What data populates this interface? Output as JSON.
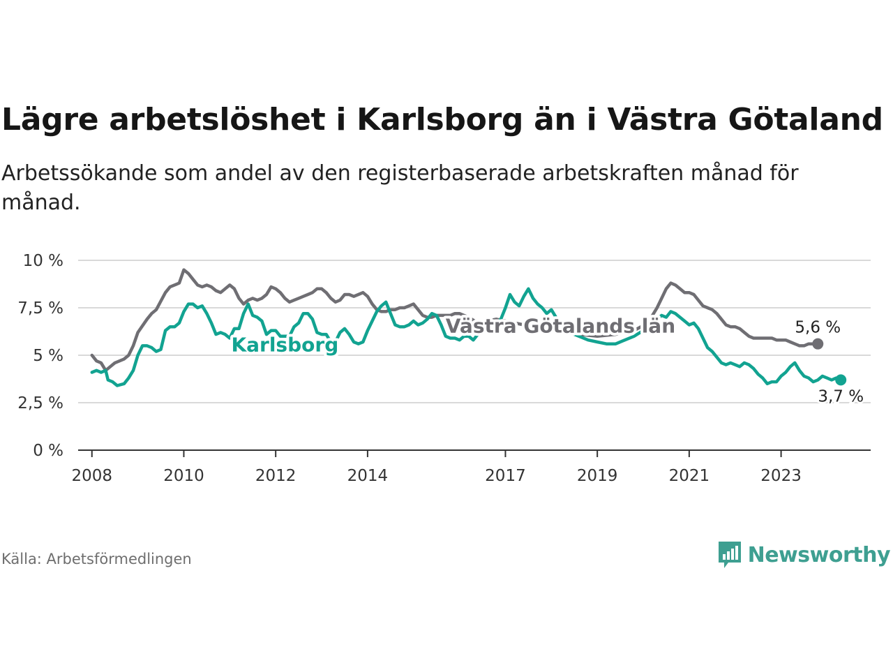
{
  "title": "Lägre arbetslöshet i Karlsborg än i Västra Götaland",
  "subtitle": "Arbetssökande som andel av den registerbaserade arbetskraften månad för månad.",
  "source": "Källa: Arbetsförmedlingen",
  "brand": "Newsworthy",
  "colors": {
    "vg": "#6f6e73",
    "karlsborg": "#12a391",
    "brand": "#3e9f91",
    "grid": "#d9d9d9",
    "axis": "#333333"
  },
  "chart_data": {
    "type": "line",
    "title": "Lägre arbetslöshet i Karlsborg än i Västra Götaland",
    "ylabel": "",
    "xlabel": "",
    "ylim": [
      0,
      10
    ],
    "xlim": [
      2007.7,
      2024.95
    ],
    "y_ticks": [
      {
        "value": 0,
        "label": "0 %"
      },
      {
        "value": 2.5,
        "label": "2,5 %"
      },
      {
        "value": 5,
        "label": "5 %"
      },
      {
        "value": 7.5,
        "label": "7,5 %"
      },
      {
        "value": 10,
        "label": "10 %"
      }
    ],
    "x_ticks": [
      {
        "value": 2008,
        "label": "2008"
      },
      {
        "value": 2010,
        "label": "2010"
      },
      {
        "value": 2012,
        "label": "2012"
      },
      {
        "value": 2014,
        "label": "2014"
      },
      {
        "value": 2017,
        "label": "2017"
      },
      {
        "value": 2019,
        "label": "2019"
      },
      {
        "value": 2021,
        "label": "2021"
      },
      {
        "value": 2023,
        "label": "2023"
      }
    ],
    "series": [
      {
        "name": "Västra Götalands län",
        "end_label": "5,6 %",
        "points": [
          [
            2008.0,
            5.0
          ],
          [
            2008.1,
            4.7
          ],
          [
            2008.2,
            4.6
          ],
          [
            2008.3,
            4.2
          ],
          [
            2008.4,
            4.4
          ],
          [
            2008.5,
            4.6
          ],
          [
            2008.7,
            4.8
          ],
          [
            2008.8,
            5.0
          ],
          [
            2008.9,
            5.5
          ],
          [
            2009.0,
            6.2
          ],
          [
            2009.2,
            6.9
          ],
          [
            2009.3,
            7.2
          ],
          [
            2009.4,
            7.4
          ],
          [
            2009.6,
            8.3
          ],
          [
            2009.7,
            8.6
          ],
          [
            2009.9,
            8.8
          ],
          [
            2010.0,
            9.5
          ],
          [
            2010.1,
            9.3
          ],
          [
            2010.2,
            9.0
          ],
          [
            2010.3,
            8.7
          ],
          [
            2010.4,
            8.6
          ],
          [
            2010.5,
            8.7
          ],
          [
            2010.6,
            8.6
          ],
          [
            2010.7,
            8.4
          ],
          [
            2010.8,
            8.3
          ],
          [
            2010.9,
            8.5
          ],
          [
            2011.0,
            8.7
          ],
          [
            2011.1,
            8.5
          ],
          [
            2011.2,
            8.0
          ],
          [
            2011.3,
            7.7
          ],
          [
            2011.4,
            7.9
          ],
          [
            2011.5,
            8.0
          ],
          [
            2011.6,
            7.9
          ],
          [
            2011.7,
            8.0
          ],
          [
            2011.8,
            8.2
          ],
          [
            2011.9,
            8.6
          ],
          [
            2012.0,
            8.5
          ],
          [
            2012.1,
            8.3
          ],
          [
            2012.2,
            8.0
          ],
          [
            2012.3,
            7.8
          ],
          [
            2012.4,
            7.9
          ],
          [
            2012.5,
            8.0
          ],
          [
            2012.6,
            8.1
          ],
          [
            2012.7,
            8.2
          ],
          [
            2012.8,
            8.3
          ],
          [
            2012.9,
            8.5
          ],
          [
            2013.0,
            8.5
          ],
          [
            2013.1,
            8.3
          ],
          [
            2013.2,
            8.0
          ],
          [
            2013.3,
            7.8
          ],
          [
            2013.4,
            7.9
          ],
          [
            2013.5,
            8.2
          ],
          [
            2013.6,
            8.2
          ],
          [
            2013.7,
            8.1
          ],
          [
            2013.8,
            8.2
          ],
          [
            2013.9,
            8.3
          ],
          [
            2014.0,
            8.1
          ],
          [
            2014.1,
            7.7
          ],
          [
            2014.2,
            7.4
          ],
          [
            2014.3,
            7.3
          ],
          [
            2014.4,
            7.3
          ],
          [
            2014.5,
            7.4
          ],
          [
            2014.6,
            7.4
          ],
          [
            2014.7,
            7.5
          ],
          [
            2014.8,
            7.5
          ],
          [
            2014.9,
            7.6
          ],
          [
            2015.0,
            7.7
          ],
          [
            2015.1,
            7.4
          ],
          [
            2015.2,
            7.1
          ],
          [
            2015.3,
            7.0
          ],
          [
            2015.4,
            7.0
          ],
          [
            2015.5,
            7.1
          ],
          [
            2015.6,
            7.1
          ],
          [
            2015.8,
            7.1
          ],
          [
            2015.9,
            7.2
          ],
          [
            2016.0,
            7.2
          ],
          [
            2016.1,
            7.1
          ],
          [
            2016.2,
            7.0
          ],
          [
            2016.4,
            6.7
          ],
          [
            2016.6,
            6.8
          ],
          [
            2016.8,
            6.9
          ],
          [
            2017.0,
            6.8
          ],
          [
            2017.4,
            6.6
          ],
          [
            2017.8,
            6.4
          ],
          [
            2018.2,
            6.2
          ],
          [
            2018.6,
            6.1
          ],
          [
            2019.0,
            6.0
          ],
          [
            2019.4,
            6.1
          ],
          [
            2019.8,
            6.3
          ],
          [
            2020.1,
            6.7
          ],
          [
            2020.3,
            7.5
          ],
          [
            2020.4,
            8.0
          ],
          [
            2020.5,
            8.5
          ],
          [
            2020.6,
            8.8
          ],
          [
            2020.7,
            8.7
          ],
          [
            2020.8,
            8.5
          ],
          [
            2020.9,
            8.3
          ],
          [
            2021.0,
            8.3
          ],
          [
            2021.1,
            8.2
          ],
          [
            2021.2,
            7.9
          ],
          [
            2021.3,
            7.6
          ],
          [
            2021.4,
            7.5
          ],
          [
            2021.5,
            7.4
          ],
          [
            2021.6,
            7.2
          ],
          [
            2021.7,
            6.9
          ],
          [
            2021.8,
            6.6
          ],
          [
            2021.9,
            6.5
          ],
          [
            2022.0,
            6.5
          ],
          [
            2022.1,
            6.4
          ],
          [
            2022.2,
            6.2
          ],
          [
            2022.3,
            6.0
          ],
          [
            2022.4,
            5.9
          ],
          [
            2022.6,
            5.9
          ],
          [
            2022.8,
            5.9
          ],
          [
            2022.9,
            5.8
          ],
          [
            2023.0,
            5.8
          ],
          [
            2023.1,
            5.8
          ],
          [
            2023.2,
            5.7
          ],
          [
            2023.3,
            5.6
          ],
          [
            2023.4,
            5.5
          ],
          [
            2023.5,
            5.5
          ],
          [
            2023.6,
            5.6
          ],
          [
            2023.7,
            5.6
          ],
          [
            2023.8,
            5.6
          ]
        ]
      },
      {
        "name": "Karlsborg",
        "end_label": "3,7 %",
        "points": [
          [
            2008.0,
            4.1
          ],
          [
            2008.1,
            4.2
          ],
          [
            2008.2,
            4.1
          ],
          [
            2008.3,
            4.2
          ],
          [
            2008.35,
            3.7
          ],
          [
            2008.45,
            3.6
          ],
          [
            2008.55,
            3.4
          ],
          [
            2008.7,
            3.5
          ],
          [
            2008.8,
            3.8
          ],
          [
            2008.9,
            4.2
          ],
          [
            2009.0,
            5.0
          ],
          [
            2009.1,
            5.5
          ],
          [
            2009.2,
            5.5
          ],
          [
            2009.3,
            5.4
          ],
          [
            2009.4,
            5.2
          ],
          [
            2009.5,
            5.3
          ],
          [
            2009.6,
            6.3
          ],
          [
            2009.7,
            6.5
          ],
          [
            2009.8,
            6.5
          ],
          [
            2009.9,
            6.7
          ],
          [
            2010.0,
            7.3
          ],
          [
            2010.1,
            7.7
          ],
          [
            2010.2,
            7.7
          ],
          [
            2010.3,
            7.5
          ],
          [
            2010.4,
            7.6
          ],
          [
            2010.5,
            7.2
          ],
          [
            2010.6,
            6.7
          ],
          [
            2010.7,
            6.1
          ],
          [
            2010.8,
            6.2
          ],
          [
            2010.9,
            6.1
          ],
          [
            2011.0,
            5.9
          ],
          [
            2011.1,
            6.4
          ],
          [
            2011.2,
            6.4
          ],
          [
            2011.3,
            7.2
          ],
          [
            2011.4,
            7.7
          ],
          [
            2011.5,
            7.1
          ],
          [
            2011.6,
            7.0
          ],
          [
            2011.7,
            6.8
          ],
          [
            2011.8,
            6.1
          ],
          [
            2011.9,
            6.3
          ],
          [
            2012.0,
            6.3
          ],
          [
            2012.1,
            6.0
          ],
          [
            2012.2,
            6.0
          ],
          [
            2012.3,
            6.0
          ],
          [
            2012.4,
            6.5
          ],
          [
            2012.5,
            6.7
          ],
          [
            2012.6,
            7.2
          ],
          [
            2012.7,
            7.2
          ],
          [
            2012.8,
            6.9
          ],
          [
            2012.9,
            6.2
          ],
          [
            2013.0,
            6.1
          ],
          [
            2013.1,
            6.1
          ],
          [
            2013.2,
            5.7
          ],
          [
            2013.3,
            5.7
          ],
          [
            2013.4,
            6.2
          ],
          [
            2013.5,
            6.4
          ],
          [
            2013.6,
            6.1
          ],
          [
            2013.7,
            5.7
          ],
          [
            2013.8,
            5.6
          ],
          [
            2013.9,
            5.7
          ],
          [
            2014.0,
            6.3
          ],
          [
            2014.1,
            6.8
          ],
          [
            2014.2,
            7.3
          ],
          [
            2014.3,
            7.6
          ],
          [
            2014.4,
            7.8
          ],
          [
            2014.5,
            7.2
          ],
          [
            2014.6,
            6.6
          ],
          [
            2014.7,
            6.5
          ],
          [
            2014.8,
            6.5
          ],
          [
            2014.9,
            6.6
          ],
          [
            2015.0,
            6.8
          ],
          [
            2015.1,
            6.6
          ],
          [
            2015.2,
            6.7
          ],
          [
            2015.3,
            6.9
          ],
          [
            2015.4,
            7.2
          ],
          [
            2015.5,
            7.1
          ],
          [
            2015.6,
            6.6
          ],
          [
            2015.7,
            6.0
          ],
          [
            2015.8,
            5.9
          ],
          [
            2015.9,
            5.9
          ],
          [
            2016.0,
            5.8
          ],
          [
            2016.1,
            6.0
          ],
          [
            2016.2,
            6.0
          ],
          [
            2016.3,
            5.8
          ],
          [
            2016.4,
            6.1
          ],
          [
            2016.5,
            6.5
          ],
          [
            2016.6,
            6.9
          ],
          [
            2016.7,
            6.8
          ],
          [
            2016.8,
            6.7
          ],
          [
            2016.9,
            6.9
          ],
          [
            2017.0,
            7.5
          ],
          [
            2017.1,
            8.2
          ],
          [
            2017.2,
            7.8
          ],
          [
            2017.3,
            7.6
          ],
          [
            2017.4,
            8.1
          ],
          [
            2017.5,
            8.5
          ],
          [
            2017.6,
            8.0
          ],
          [
            2017.7,
            7.7
          ],
          [
            2017.8,
            7.5
          ],
          [
            2017.9,
            7.2
          ],
          [
            2018.0,
            7.4
          ],
          [
            2018.1,
            7.0
          ],
          [
            2018.2,
            6.6
          ],
          [
            2018.4,
            6.2
          ],
          [
            2018.6,
            6.0
          ],
          [
            2018.8,
            5.8
          ],
          [
            2019.0,
            5.7
          ],
          [
            2019.2,
            5.6
          ],
          [
            2019.4,
            5.6
          ],
          [
            2019.6,
            5.8
          ],
          [
            2019.8,
            6.0
          ],
          [
            2020.0,
            6.3
          ],
          [
            2020.1,
            6.5
          ],
          [
            2020.2,
            6.8
          ],
          [
            2020.3,
            6.9
          ],
          [
            2020.4,
            7.1
          ],
          [
            2020.5,
            7.0
          ],
          [
            2020.6,
            7.3
          ],
          [
            2020.7,
            7.2
          ],
          [
            2020.8,
            7.0
          ],
          [
            2020.9,
            6.8
          ],
          [
            2021.0,
            6.6
          ],
          [
            2021.1,
            6.7
          ],
          [
            2021.2,
            6.4
          ],
          [
            2021.3,
            5.9
          ],
          [
            2021.4,
            5.4
          ],
          [
            2021.5,
            5.2
          ],
          [
            2021.6,
            4.9
          ],
          [
            2021.7,
            4.6
          ],
          [
            2021.8,
            4.5
          ],
          [
            2021.9,
            4.6
          ],
          [
            2022.0,
            4.5
          ],
          [
            2022.1,
            4.4
          ],
          [
            2022.2,
            4.6
          ],
          [
            2022.3,
            4.5
          ],
          [
            2022.4,
            4.3
          ],
          [
            2022.5,
            4.0
          ],
          [
            2022.6,
            3.8
          ],
          [
            2022.7,
            3.5
          ],
          [
            2022.8,
            3.6
          ],
          [
            2022.9,
            3.6
          ],
          [
            2023.0,
            3.9
          ],
          [
            2023.1,
            4.1
          ],
          [
            2023.2,
            4.4
          ],
          [
            2023.3,
            4.6
          ],
          [
            2023.4,
            4.2
          ],
          [
            2023.5,
            3.9
          ],
          [
            2023.6,
            3.8
          ],
          [
            2023.7,
            3.6
          ],
          [
            2023.8,
            3.7
          ],
          [
            2023.9,
            3.9
          ],
          [
            2024.0,
            3.8
          ],
          [
            2024.1,
            3.7
          ],
          [
            2024.2,
            3.8
          ],
          [
            2024.3,
            3.7
          ]
        ]
      }
    ],
    "annotations": [
      {
        "text": "Karlsborg",
        "series": "Karlsborg",
        "x": 2012.2,
        "y": 5.2
      },
      {
        "text": "Västra Götalands län",
        "series": "Västra Götalands län",
        "x": 2018.2,
        "y": 6.2
      }
    ]
  }
}
